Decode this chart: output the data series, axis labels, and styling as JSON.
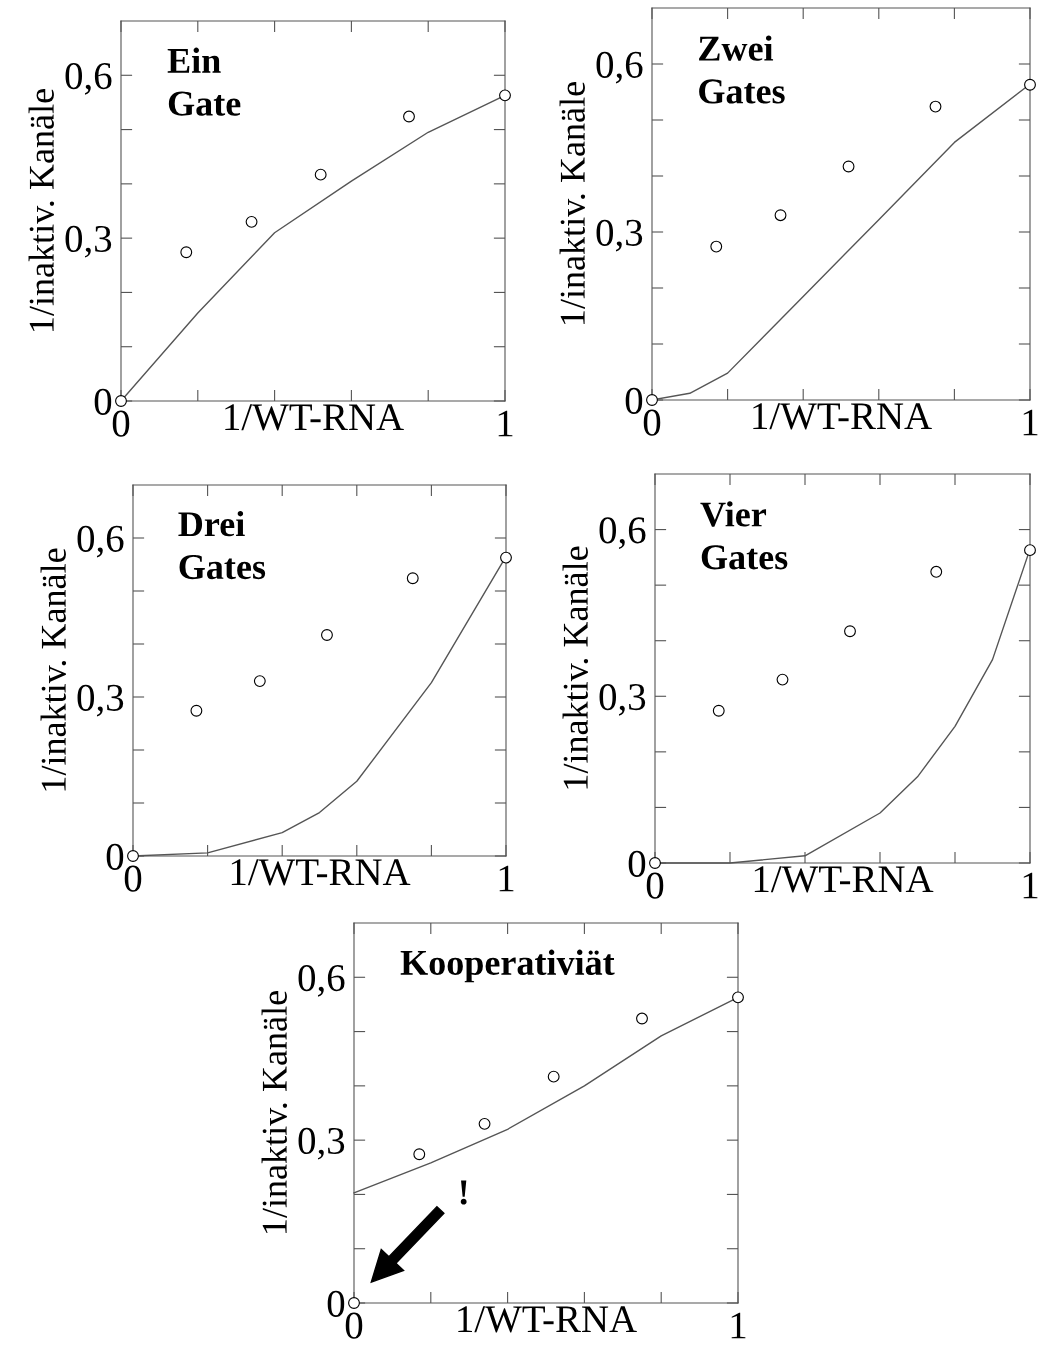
{
  "chart_data": [
    {
      "type": "scatter",
      "title": "Ein\nGate",
      "xlabel": "1/WT-RNA",
      "ylabel": "1/inaktiv. Kanäle",
      "xlim": [
        0,
        1
      ],
      "ylim": [
        0,
        0.7
      ],
      "xticks": [
        0,
        {
          "value": 0.2,
          "label": null
        },
        {
          "value": 0.4,
          "label": null
        },
        {
          "value": 0.6,
          "label": null
        },
        {
          "value": 0.8,
          "label": null
        },
        1
      ],
      "yticks": [
        0,
        {
          "value": 0.1,
          "label": null
        },
        {
          "value": 0.2,
          "label": null
        },
        {
          "value": 0.3,
          "label": "0,3"
        },
        {
          "value": 0.4,
          "label": null
        },
        {
          "value": 0.5,
          "label": null
        },
        {
          "value": 0.6,
          "label": "0,6"
        }
      ],
      "grid": false,
      "legend": false,
      "series": [
        {
          "type": "line",
          "color": "#555555",
          "marker": "none",
          "x": [
            0,
            0.2,
            0.4,
            0.6,
            0.8,
            1
          ],
          "values": [
            0,
            0.162,
            0.31,
            0.405,
            0.495,
            0.563
          ]
        },
        {
          "type": "scatter",
          "color": "#000000",
          "marker": "circle",
          "x": [
            0,
            0.17,
            0.34,
            0.52,
            0.75,
            1
          ],
          "values": [
            0,
            0.274,
            0.33,
            0.417,
            0.524,
            0.563
          ]
        }
      ]
    },
    {
      "type": "scatter",
      "title": "Zwei\nGates",
      "xlabel": "1/WT-RNA",
      "ylabel": "1/inaktiv. Kanäle",
      "xlim": [
        0,
        1
      ],
      "ylim": [
        0,
        0.7
      ],
      "xticks": [
        0,
        {
          "value": 0.2,
          "label": null
        },
        {
          "value": 0.4,
          "label": null
        },
        {
          "value": 0.6,
          "label": null
        },
        {
          "value": 0.8,
          "label": null
        },
        1
      ],
      "yticks": [
        0,
        {
          "value": 0.1,
          "label": null
        },
        {
          "value": 0.2,
          "label": null
        },
        {
          "value": 0.3,
          "label": "0,3"
        },
        {
          "value": 0.4,
          "label": null
        },
        {
          "value": 0.5,
          "label": null
        },
        {
          "value": 0.6,
          "label": "0,6"
        }
      ],
      "grid": false,
      "legend": false,
      "series": [
        {
          "type": "line",
          "color": "#555555",
          "marker": "none",
          "x": [
            0,
            0.1,
            0.2,
            0.4,
            0.6,
            0.8,
            1
          ],
          "values": [
            0,
            0.012,
            0.048,
            0.185,
            0.322,
            0.46,
            0.564
          ]
        },
        {
          "type": "scatter",
          "color": "#000000",
          "marker": "circle",
          "x": [
            0,
            0.17,
            0.34,
            0.52,
            0.75,
            1
          ],
          "values": [
            0,
            0.274,
            0.33,
            0.417,
            0.524,
            0.563
          ]
        }
      ]
    },
    {
      "type": "scatter",
      "title": "Drei\nGates",
      "xlabel": "1/WT-RNA",
      "ylabel": "1/inaktiv. Kanäle",
      "xlim": [
        0,
        1
      ],
      "ylim": [
        0,
        0.7
      ],
      "xticks": [
        0,
        {
          "value": 0.2,
          "label": null
        },
        {
          "value": 0.4,
          "label": null
        },
        {
          "value": 0.6,
          "label": null
        },
        {
          "value": 0.8,
          "label": null
        },
        1
      ],
      "yticks": [
        0,
        {
          "value": 0.1,
          "label": null
        },
        {
          "value": 0.2,
          "label": null
        },
        {
          "value": 0.3,
          "label": "0,3"
        },
        {
          "value": 0.4,
          "label": null
        },
        {
          "value": 0.5,
          "label": null
        },
        {
          "value": 0.6,
          "label": "0,6"
        }
      ],
      "grid": false,
      "legend": false,
      "series": [
        {
          "type": "line",
          "color": "#555555",
          "marker": "none",
          "x": [
            0,
            0.2,
            0.4,
            0.5,
            0.6,
            0.8,
            1
          ],
          "values": [
            0,
            0.006,
            0.044,
            0.082,
            0.141,
            0.327,
            0.565
          ]
        },
        {
          "type": "scatter",
          "color": "#000000",
          "marker": "circle",
          "x": [
            0,
            0.17,
            0.34,
            0.52,
            0.75,
            1
          ],
          "values": [
            0,
            0.274,
            0.33,
            0.417,
            0.524,
            0.563
          ]
        }
      ]
    },
    {
      "type": "scatter",
      "title": "Vier\nGates",
      "xlabel": "1/WT-RNA",
      "ylabel": "1/inaktiv. Kanäle",
      "xlim": [
        0,
        1
      ],
      "ylim": [
        0,
        0.7
      ],
      "xticks": [
        0,
        {
          "value": 0.2,
          "label": null
        },
        {
          "value": 0.4,
          "label": null
        },
        {
          "value": 0.6,
          "label": null
        },
        {
          "value": 0.8,
          "label": null
        },
        1
      ],
      "yticks": [
        0,
        {
          "value": 0.1,
          "label": null
        },
        {
          "value": 0.2,
          "label": null
        },
        {
          "value": 0.3,
          "label": "0,3"
        },
        {
          "value": 0.4,
          "label": null
        },
        {
          "value": 0.5,
          "label": null
        },
        {
          "value": 0.6,
          "label": "0,6"
        }
      ],
      "grid": false,
      "legend": false,
      "series": [
        {
          "type": "line",
          "color": "#555555",
          "marker": "none",
          "x": [
            0,
            0.2,
            0.4,
            0.6,
            0.7,
            0.8,
            0.9,
            1
          ],
          "values": [
            0,
            0.0,
            0.013,
            0.09,
            0.155,
            0.246,
            0.366,
            0.565
          ]
        },
        {
          "type": "scatter",
          "color": "#000000",
          "marker": "circle",
          "x": [
            0,
            0.17,
            0.34,
            0.52,
            0.75,
            1
          ],
          "values": [
            0,
            0.274,
            0.33,
            0.417,
            0.524,
            0.563
          ]
        }
      ]
    },
    {
      "type": "scatter",
      "title": "Kooperativiät",
      "xlabel": "1/WT-RNA",
      "ylabel": "1/inaktiv. Kanäle",
      "xlim": [
        0,
        1
      ],
      "ylim": [
        0,
        0.7
      ],
      "xticks": [
        0,
        {
          "value": 0.2,
          "label": null
        },
        {
          "value": 0.4,
          "label": null
        },
        {
          "value": 0.6,
          "label": null
        },
        {
          "value": 0.8,
          "label": null
        },
        1
      ],
      "yticks": [
        0,
        {
          "value": 0.1,
          "label": null
        },
        {
          "value": 0.2,
          "label": null
        },
        {
          "value": 0.3,
          "label": "0,3"
        },
        {
          "value": 0.4,
          "label": null
        },
        {
          "value": 0.5,
          "label": null
        },
        {
          "value": 0.6,
          "label": "0,6"
        }
      ],
      "grid": false,
      "legend": false,
      "annotations": [
        "!"
      ],
      "series": [
        {
          "type": "line",
          "color": "#555555",
          "marker": "none",
          "x": [
            0,
            0.2,
            0.4,
            0.6,
            0.8,
            1
          ],
          "values": [
            0.203,
            0.258,
            0.32,
            0.4,
            0.492,
            0.563
          ]
        },
        {
          "type": "scatter",
          "color": "#000000",
          "marker": "circle",
          "x": [
            0,
            0.17,
            0.34,
            0.52,
            0.75,
            1
          ],
          "values": [
            0,
            0.274,
            0.33,
            0.417,
            0.524,
            0.563
          ]
        }
      ]
    }
  ]
}
